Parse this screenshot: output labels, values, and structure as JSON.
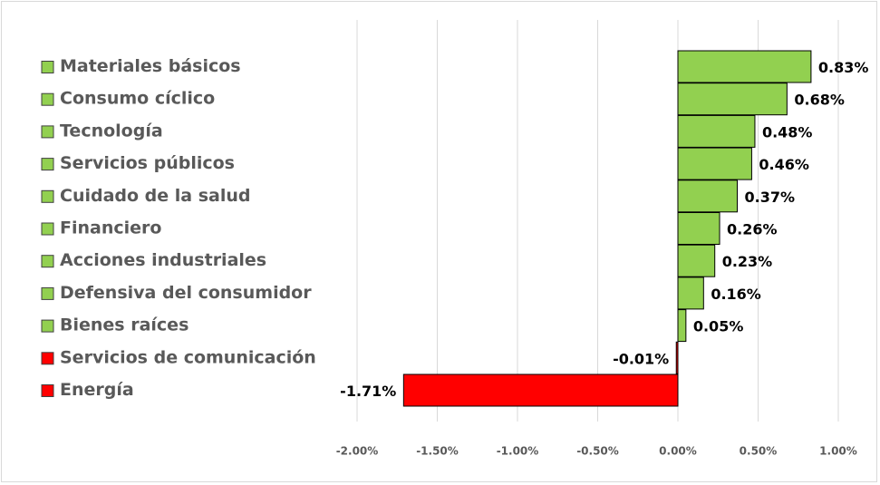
{
  "chart_data": {
    "type": "bar",
    "orientation": "horizontal",
    "categories": [
      "Materiales básicos",
      "Consumo cíclico",
      "Tecnología",
      "Servicios públicos",
      "Cuidado de la salud",
      "Financiero",
      "Acciones industriales",
      "Defensiva del consumidor",
      "Bienes raíces",
      "Servicios de comunicación",
      "Energía"
    ],
    "values": [
      0.83,
      0.68,
      0.48,
      0.46,
      0.37,
      0.26,
      0.23,
      0.16,
      0.05,
      -0.01,
      -1.71
    ],
    "value_labels": [
      "0.83%",
      "0.68%",
      "0.48%",
      "0.46%",
      "0.37%",
      "0.26%",
      "0.23%",
      "0.16%",
      "0.05%",
      "-0.01%",
      "-1.71%"
    ],
    "colors": [
      "#92d050",
      "#92d050",
      "#92d050",
      "#92d050",
      "#92d050",
      "#92d050",
      "#92d050",
      "#92d050",
      "#92d050",
      "#ff0000",
      "#ff0000"
    ],
    "xlim": [
      -2,
      1
    ],
    "xticks": [
      {
        "value": -2,
        "label": "-2.00%"
      },
      {
        "value": -1.5,
        "label": "-1.50%"
      },
      {
        "value": -1,
        "label": "-1.00%"
      },
      {
        "value": -0.5,
        "label": "-0.50%"
      },
      {
        "value": 0,
        "label": "0.00%"
      },
      {
        "value": 0.5,
        "label": "0.50%"
      },
      {
        "value": 1,
        "label": "1.00%"
      }
    ],
    "grid": true
  }
}
